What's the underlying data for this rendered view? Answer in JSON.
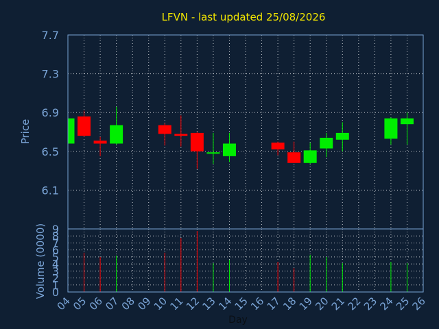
{
  "chart_data": {
    "type": "candlestick",
    "title": "LFVN - last updated 25/08/2026",
    "xlabel": "Day",
    "price_panel": {
      "ylabel": "Price",
      "ylim": [
        5.7,
        7.7
      ],
      "ticks": [
        "7.7",
        "7.3",
        "6.9",
        "6.5",
        "6.1"
      ],
      "grid": true
    },
    "volume_panel": {
      "ylabel": "Volume (0000)",
      "ylim": [
        0,
        9
      ],
      "ticks": [
        "9",
        "8",
        "7",
        "6",
        "5",
        "4",
        "3",
        "2",
        "1",
        "0"
      ],
      "grid": true
    },
    "x_ticks": [
      "04",
      "05",
      "06",
      "07",
      "08",
      "09",
      "10",
      "11",
      "12",
      "13",
      "14",
      "15",
      "16",
      "17",
      "18",
      "19",
      "20",
      "21",
      "22",
      "23",
      "24",
      "25",
      "26"
    ],
    "colors": {
      "up": "#00ee00",
      "down": "#ff0000",
      "background": "#0f1f33",
      "axis_text": "#7aa4d6",
      "title": "#f2e600"
    },
    "series": [
      {
        "day": "04",
        "open": 6.58,
        "high": 6.85,
        "low": 6.55,
        "close": 6.84,
        "volume": 0
      },
      {
        "day": "05",
        "open": 6.86,
        "high": 6.92,
        "low": 6.65,
        "close": 6.66,
        "volume": 5.6
      },
      {
        "day": "06",
        "open": 6.61,
        "high": 6.65,
        "low": 6.45,
        "close": 6.58,
        "volume": 5.0
      },
      {
        "day": "07",
        "open": 6.58,
        "high": 6.96,
        "low": 6.57,
        "close": 6.77,
        "volume": 5.2
      },
      {
        "day": "10",
        "open": 6.77,
        "high": 6.79,
        "low": 6.56,
        "close": 6.68,
        "volume": 5.6
      },
      {
        "day": "11",
        "open": 6.68,
        "high": 6.87,
        "low": 6.55,
        "close": 6.66,
        "volume": 7.7
      },
      {
        "day": "12",
        "open": 6.69,
        "high": 6.7,
        "low": 6.32,
        "close": 6.5,
        "volume": 8.7
      },
      {
        "day": "13",
        "open": 6.48,
        "high": 6.69,
        "low": 6.37,
        "close": 6.49,
        "volume": 4.1
      },
      {
        "day": "14",
        "open": 6.45,
        "high": 6.69,
        "low": 6.39,
        "close": 6.58,
        "volume": 4.6
      },
      {
        "day": "17",
        "open": 6.59,
        "high": 6.6,
        "low": 6.46,
        "close": 6.52,
        "volume": 4.3
      },
      {
        "day": "18",
        "open": 6.49,
        "high": 6.6,
        "low": 6.38,
        "close": 6.38,
        "volume": 3.4
      },
      {
        "day": "19",
        "open": 6.38,
        "high": 6.59,
        "low": 6.37,
        "close": 6.51,
        "volume": 5.3
      },
      {
        "day": "20",
        "open": 6.53,
        "high": 6.69,
        "low": 6.44,
        "close": 6.64,
        "volume": 5.0
      },
      {
        "day": "21",
        "open": 6.62,
        "high": 6.8,
        "low": 6.5,
        "close": 6.69,
        "volume": 4.1
      },
      {
        "day": "24",
        "open": 6.63,
        "high": 6.85,
        "low": 6.57,
        "close": 6.84,
        "volume": 4.3
      },
      {
        "day": "25",
        "open": 6.78,
        "high": 6.9,
        "low": 6.57,
        "close": 6.84,
        "volume": 4.1
      }
    ]
  }
}
